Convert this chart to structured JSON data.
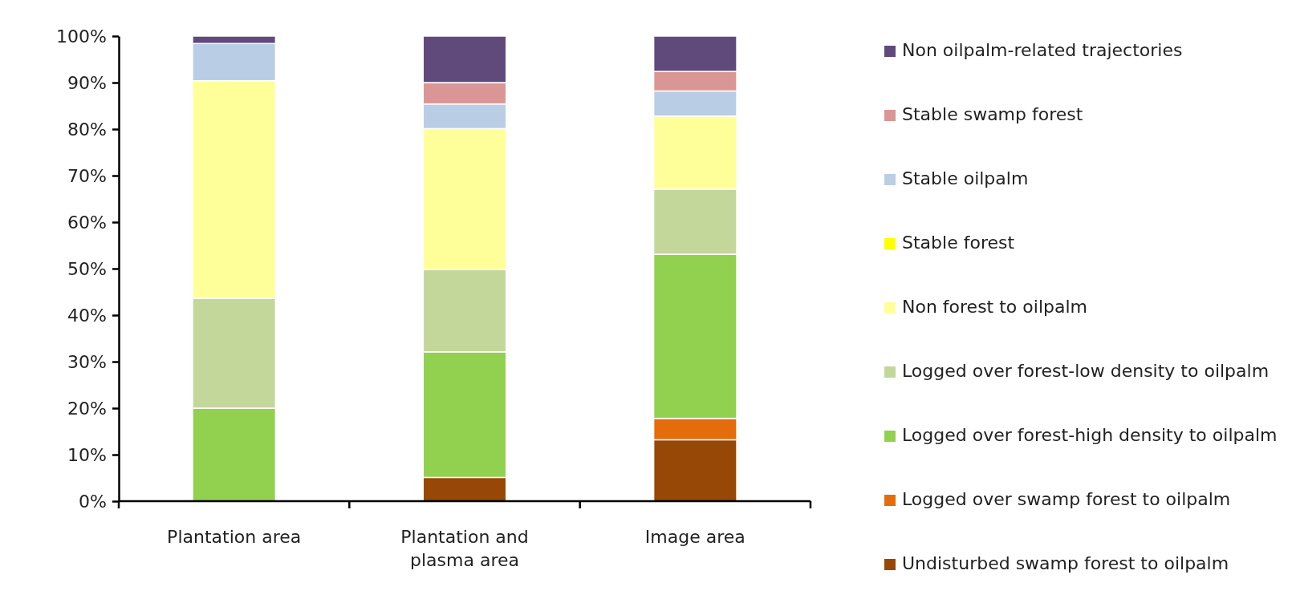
{
  "chart_data": {
    "type": "bar",
    "stacked": true,
    "legend": "right",
    "grid": false,
    "categories": [
      "Plantation area",
      "Plantation and plasma area",
      "Image area"
    ],
    "ylim": [
      0,
      100
    ],
    "yticks": [
      {
        "value": 0,
        "label": "0%"
      },
      {
        "value": 10,
        "label": "10%"
      },
      {
        "value": 20,
        "label": "20%"
      },
      {
        "value": 30,
        "label": "30%"
      },
      {
        "value": 40,
        "label": "40%"
      },
      {
        "value": 50,
        "label": "50%"
      },
      {
        "value": 60,
        "label": "60%"
      },
      {
        "value": 70,
        "label": "70%"
      },
      {
        "value": 80,
        "label": "80%"
      },
      {
        "value": 90,
        "label": "90%"
      },
      {
        "value": 100,
        "label": "100%"
      }
    ],
    "series": [
      {
        "name": "Undisturbed swamp forest to oilpalm",
        "color": "#974706",
        "values": [
          0,
          5.1,
          13.2
        ]
      },
      {
        "name": "Logged over swamp forest to oilpalm",
        "color": "#e46c0a",
        "values": [
          0,
          0,
          4.6
        ]
      },
      {
        "name": "Logged over forest-high density to oilpalm",
        "color": "#92d050",
        "values": [
          20,
          27,
          35.3
        ]
      },
      {
        "name": "Logged over forest-low density to oilpalm",
        "color": "#c4d79b",
        "values": [
          23.6,
          17.7,
          14
        ]
      },
      {
        "name": "Non forest to oilpalm",
        "color": "#ffff99",
        "values": [
          46.8,
          30.3,
          15.7
        ]
      },
      {
        "name": "Stable forest",
        "color": "#ffff00",
        "values": [
          0,
          0,
          0
        ]
      },
      {
        "name": "Stable oilpalm",
        "color": "#b9cde5",
        "values": [
          8,
          5.3,
          5.4
        ]
      },
      {
        "name": "Stable swamp forest",
        "color": "#d99694",
        "values": [
          0,
          4.6,
          4.2
        ]
      },
      {
        "name": "Non oilpalm-related trajectories",
        "color": "#604a7b",
        "values": [
          1.6,
          10,
          7.6
        ]
      }
    ]
  }
}
